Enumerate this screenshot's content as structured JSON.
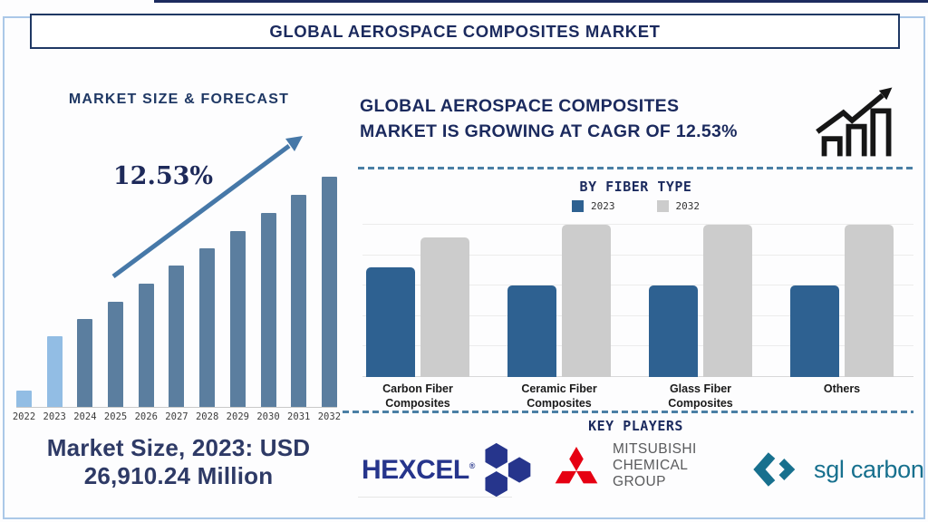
{
  "page": {
    "title": "GLOBAL AEROSPACE COMPOSITES MARKET"
  },
  "left_panel": {
    "heading": "MARKET SIZE & FORECAST",
    "cagr_label": "12.53%",
    "caption_line1": "Market Size, 2023: USD",
    "caption_line2": "26,910.24 Million"
  },
  "right_panel": {
    "heading_line1": "GLOBAL AEROSPACE COMPOSITES",
    "heading_line2": "MARKET IS GROWING AT CAGR OF 12.53%",
    "fiber_section_title": "BY FIBER TYPE",
    "key_players_title": "KEY PLAYERS"
  },
  "logos": {
    "hexcel": {
      "text": "HEXCEL",
      "reg": "®",
      "color": "#26358c"
    },
    "mitsubishi": {
      "line1": "MITSUBISHI",
      "line2": "CHEMICAL",
      "line3": "GROUP",
      "mark_color": "#e60012",
      "text_color": "#595a5c"
    },
    "sgl": {
      "text": "sgl carbon",
      "color": "#17708e"
    }
  },
  "colors": {
    "navy_text": "#1b2a5e",
    "heading_navy": "#1f3864",
    "steel_bar": "#5b7e9f",
    "light_bar": "#92bde4",
    "trend_arrow": "#4678a8",
    "dashed_divider": "#4a7fa5",
    "fiber_blue": "#2e6191",
    "fiber_gray": "#cccccc",
    "frame_border": "#abc8e8"
  },
  "chart_data": [
    {
      "type": "bar",
      "title": "MARKET SIZE & FORECAST",
      "categories": [
        "2022",
        "2023",
        "2024",
        "2025",
        "2026",
        "2027",
        "2028",
        "2029",
        "2030",
        "2031",
        "2032"
      ],
      "values": [
        18,
        78,
        97,
        116,
        136,
        156,
        175,
        194,
        214,
        234,
        254
      ],
      "values_note": "relative bar heights in px; chart has no y-axis scale",
      "bar_colors": [
        "#92bde4",
        "#92bde4",
        "#5b7e9f",
        "#5b7e9f",
        "#5b7e9f",
        "#5b7e9f",
        "#5b7e9f",
        "#5b7e9f",
        "#5b7e9f",
        "#5b7e9f",
        "#5b7e9f"
      ],
      "annotations": [
        "12.53%",
        "Market Size, 2023: USD 26,910.24 Million"
      ],
      "xlabel": "",
      "ylabel": "",
      "grid": false,
      "legend_position": "none"
    },
    {
      "type": "bar",
      "title": "BY FIBER TYPE",
      "categories": [
        "Carbon Fiber Composites",
        "Ceramic Fiber Composites",
        "Glass Fiber Composites",
        "Others"
      ],
      "series": [
        {
          "name": "2023",
          "color": "#2e6191",
          "values": [
            121,
            101,
            101,
            101
          ]
        },
        {
          "name": "2032",
          "color": "#cccccc",
          "values": [
            154,
            168,
            168,
            168
          ]
        }
      ],
      "values_note": "relative bar heights in px; chart has no y-axis scale",
      "xlabel": "",
      "ylabel": "",
      "grid": true,
      "gridline_count": 6,
      "legend_position": "top"
    }
  ]
}
